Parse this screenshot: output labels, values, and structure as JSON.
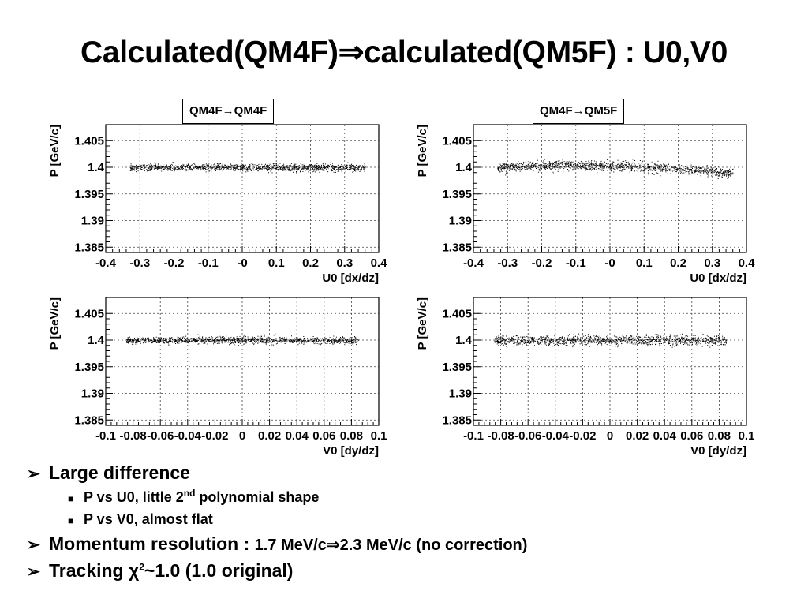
{
  "slide": {
    "title": "Calculated(QM4F)⇒calculated(QM5F) : U0,V0",
    "panel_labels": {
      "left": "QM4F→QM4F",
      "right": "QM4F→QM5F"
    }
  },
  "bullets": {
    "b1": {
      "marker": "➢",
      "text": "Large difference"
    },
    "b1_sub1": {
      "marker": "■",
      "text_before": "P vs U0, little 2",
      "sup": "nd",
      "text_after": " polynomial shape"
    },
    "b1_sub2": {
      "marker": "■",
      "text": "P vs V0, almost flat"
    },
    "b2": {
      "marker": "➢",
      "text_big": "Momentum resolution : ",
      "text_small": "1.7 MeV/c⇒2.3 MeV/c (no correction)"
    },
    "b3": {
      "marker": "➢",
      "text_before": "Tracking ",
      "chi": "χ",
      "sup": "2",
      "text_after": "~1.0 (1.0 original)"
    }
  },
  "chart_data": [
    {
      "type": "scatter",
      "panel": "QM4F→QM4F",
      "xlabel": "U0 [dx/dz]",
      "ylabel": "P [GeV/c]",
      "xlim": [
        -0.4,
        0.4
      ],
      "ylim": [
        1.384,
        1.408
      ],
      "xticks": [
        "-0.4",
        "-0.3",
        "-0.2",
        "-0.1",
        "-0",
        "0.1",
        "0.2",
        "0.3",
        "0.4"
      ],
      "yticks": [
        "1.385",
        "1.39",
        "1.395",
        "1.4",
        "1.405"
      ],
      "grid": true,
      "band": {
        "x_range": [
          -0.33,
          0.36
        ],
        "p_center_at_x_neg": 1.4,
        "p_center_at_x_zero": 1.4,
        "p_center_at_x_pos": 1.4,
        "p_spread": 0.0006
      }
    },
    {
      "type": "scatter",
      "panel": "QM4F→QM5F",
      "xlabel": "U0 [dx/dz]",
      "ylabel": "P [GeV/c]",
      "xlim": [
        -0.4,
        0.4
      ],
      "ylim": [
        1.384,
        1.408
      ],
      "xticks": [
        "-0.4",
        "-0.3",
        "-0.2",
        "-0.1",
        "-0",
        "0.1",
        "0.2",
        "0.3",
        "0.4"
      ],
      "yticks": [
        "1.385",
        "1.39",
        "1.395",
        "1.4",
        "1.405"
      ],
      "grid": true,
      "band": {
        "x_range": [
          -0.33,
          0.36
        ],
        "p_center_at_x_neg": 1.4,
        "p_center_at_x_zero": 1.4003,
        "p_center_at_x_pos": 1.3988,
        "p_spread": 0.0008
      }
    },
    {
      "type": "scatter",
      "panel": "QM4F→QM4F",
      "xlabel": "V0 [dy/dz]",
      "ylabel": "P [GeV/c]",
      "xlim": [
        -0.1,
        0.1
      ],
      "ylim": [
        1.384,
        1.408
      ],
      "xticks": [
        "-0.1",
        "-0.08",
        "-0.06",
        "-0.04",
        "-0.02",
        "0",
        "0.02",
        "0.04",
        "0.06",
        "0.08",
        "0.1"
      ],
      "yticks": [
        "1.385",
        "1.39",
        "1.395",
        "1.4",
        "1.405"
      ],
      "grid": true,
      "band": {
        "x_range": [
          -0.085,
          0.085
        ],
        "p_center_at_x_neg": 1.4,
        "p_center_at_x_zero": 1.4,
        "p_center_at_x_pos": 1.4,
        "p_spread": 0.0006
      }
    },
    {
      "type": "scatter",
      "panel": "QM4F→QM5F",
      "xlabel": "V0 [dy/dz]",
      "ylabel": "P [GeV/c]",
      "xlim": [
        -0.1,
        0.1
      ],
      "ylim": [
        1.384,
        1.408
      ],
      "xticks": [
        "-0.1",
        "-0.08",
        "-0.06",
        "-0.04",
        "-0.02",
        "0",
        "0.02",
        "0.04",
        "0.06",
        "0.08",
        "0.1"
      ],
      "yticks": [
        "1.385",
        "1.39",
        "1.395",
        "1.4",
        "1.405"
      ],
      "grid": true,
      "band": {
        "x_range": [
          -0.085,
          0.085
        ],
        "p_center_at_x_neg": 1.4,
        "p_center_at_x_zero": 1.4,
        "p_center_at_x_pos": 1.4,
        "p_spread": 0.0008
      }
    }
  ]
}
